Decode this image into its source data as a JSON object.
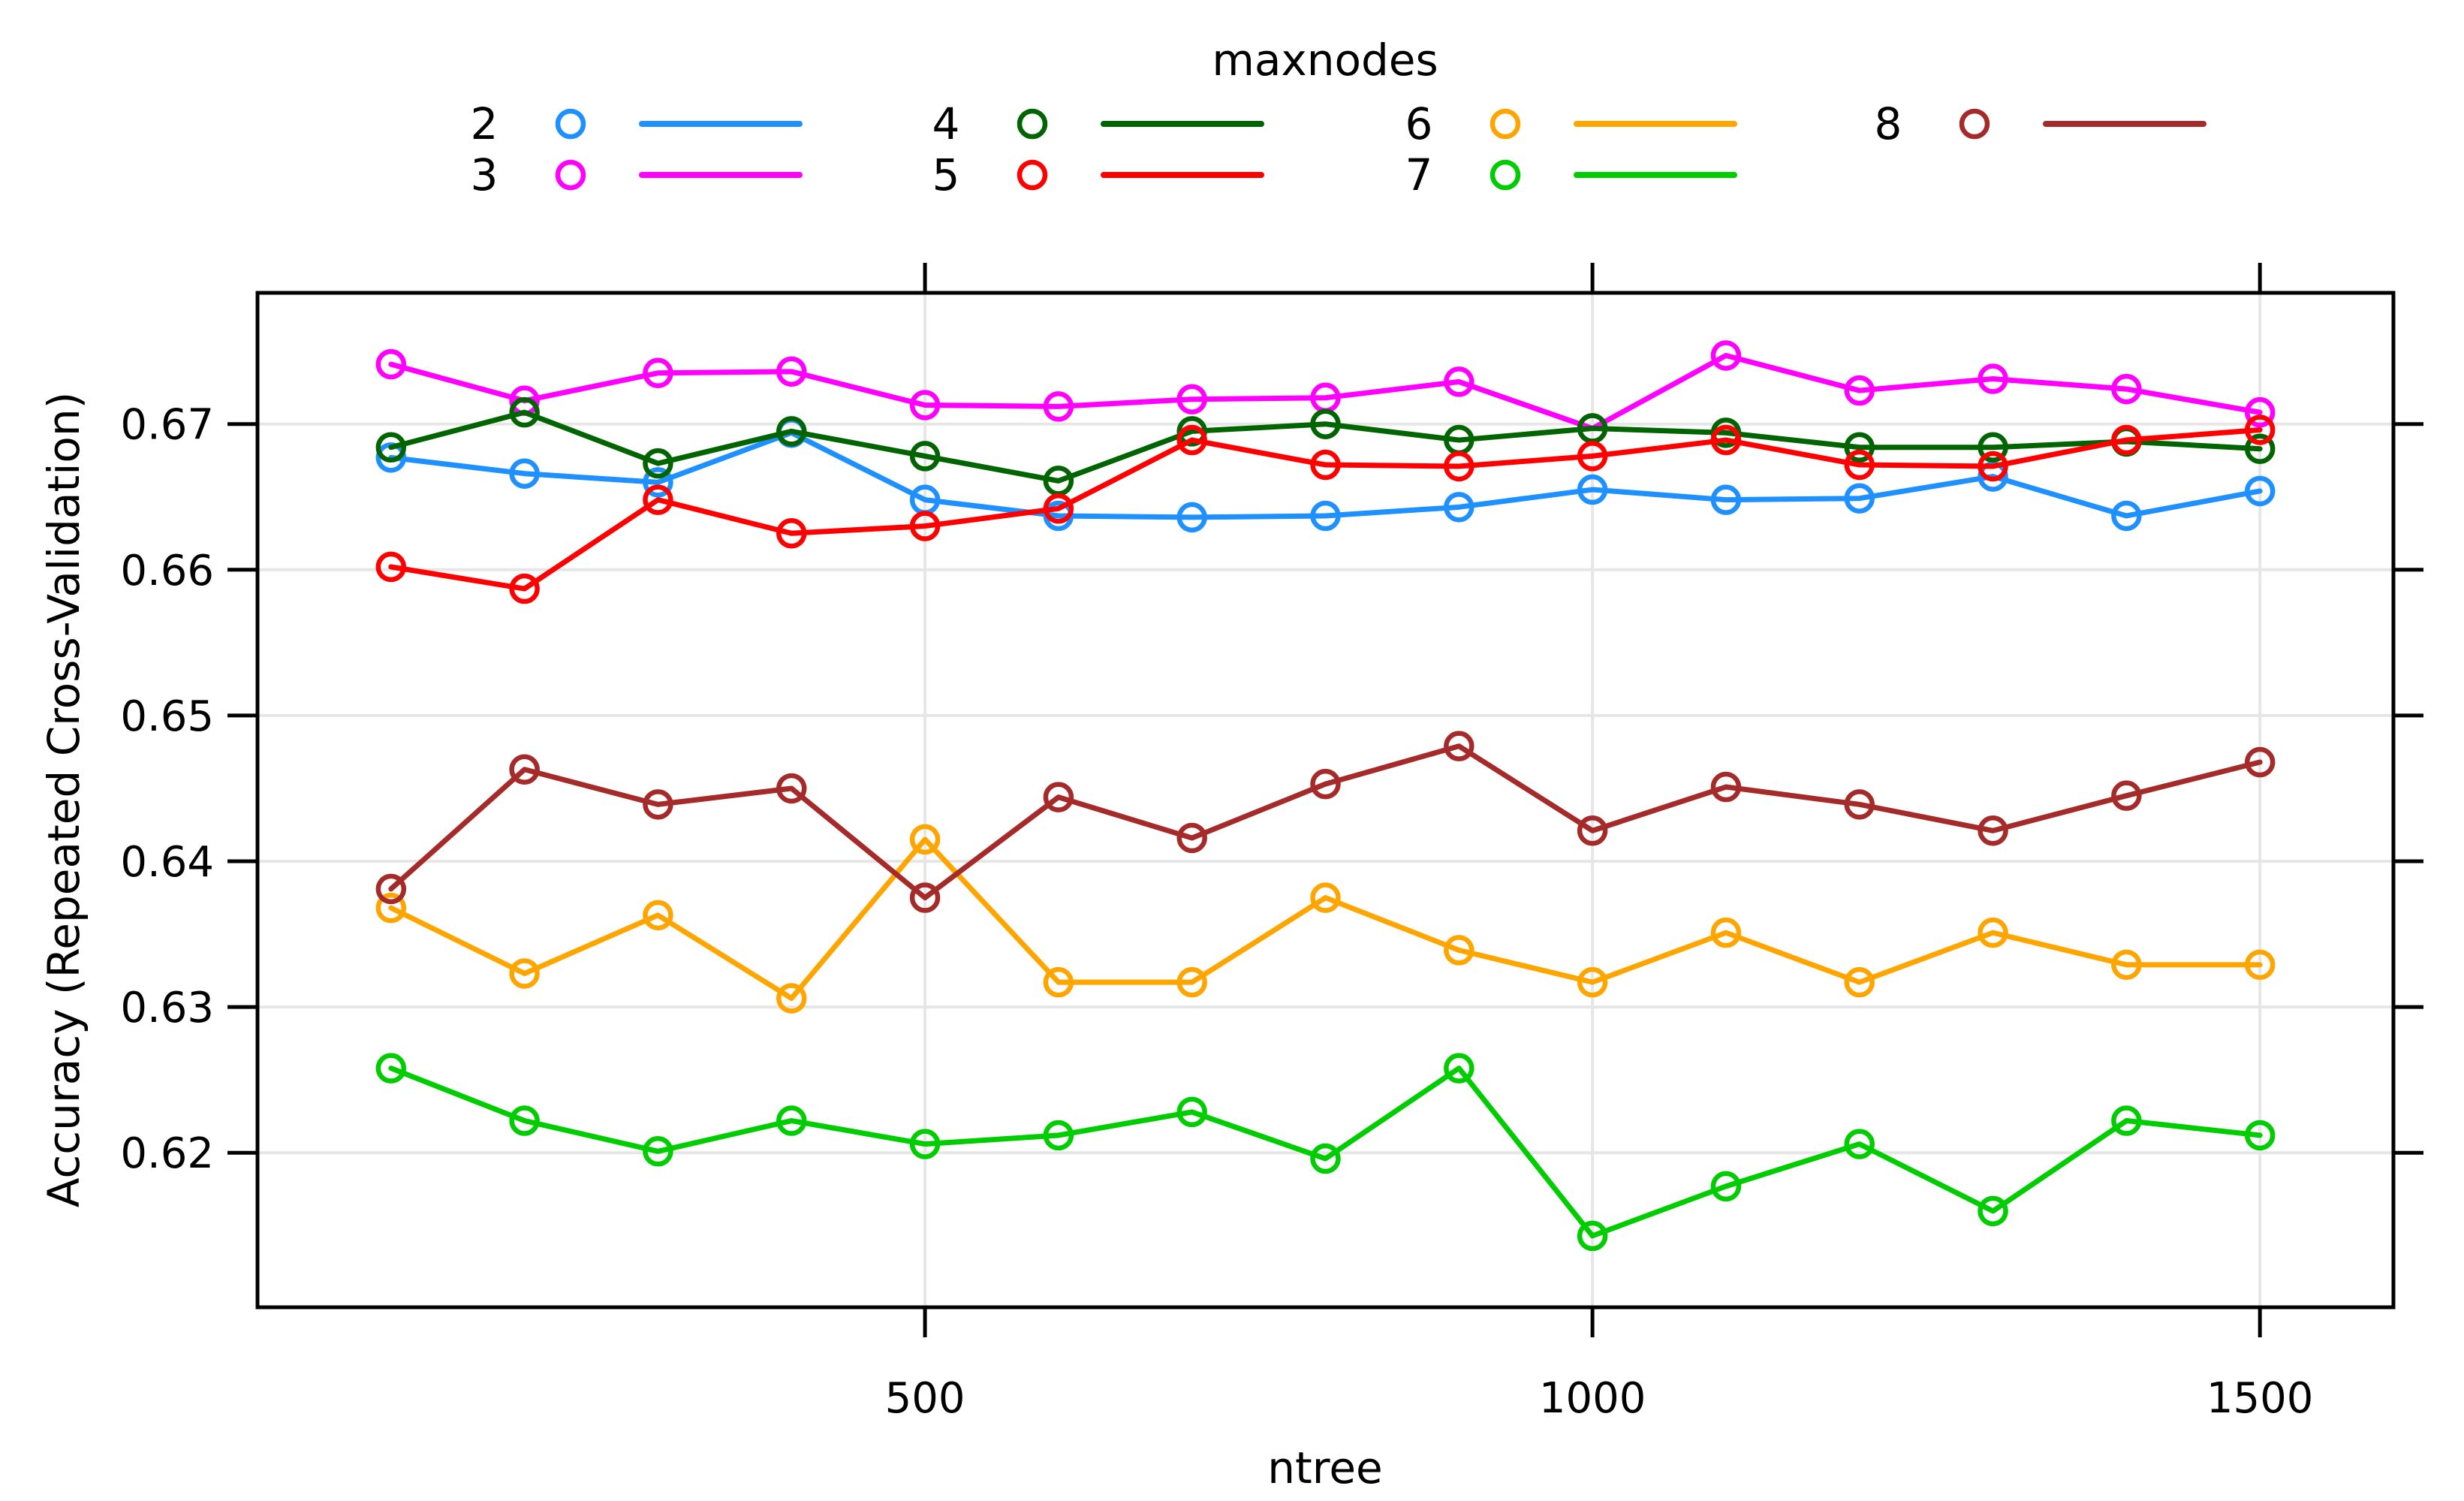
{
  "chart_data": {
    "type": "line",
    "title": "",
    "xlabel": "ntree",
    "ylabel": "Accuracy (Repeated Cross-Validation)",
    "legend_title": "maxnodes",
    "legend_position": "top",
    "grid": true,
    "x": [
      100,
      200,
      300,
      400,
      500,
      600,
      700,
      800,
      900,
      1000,
      1100,
      1200,
      1300,
      1400,
      1500
    ],
    "xlim": [
      0,
      1600
    ],
    "ylim": [
      0.6094,
      0.679
    ],
    "x_ticks": [
      500,
      1000,
      1500
    ],
    "x_tick_labels": [
      "500",
      "1000",
      "1500"
    ],
    "y_ticks": [
      0.62,
      0.63,
      0.64,
      0.65,
      0.66,
      0.67
    ],
    "y_tick_labels": [
      "0.62",
      "0.63",
      "0.64",
      "0.65",
      "0.66",
      "0.67"
    ],
    "series": [
      {
        "name": "2",
        "color": "#1E90FF",
        "values": [
          0.6677,
          0.6666,
          0.666,
          0.6694,
          0.6648,
          0.6637,
          0.6636,
          0.6637,
          0.6643,
          0.6655,
          0.6648,
          0.6649,
          0.6664,
          0.6637,
          0.6654
        ]
      },
      {
        "name": "3",
        "color": "#FF00FF",
        "values": [
          0.6741,
          0.6716,
          0.6735,
          0.6736,
          0.6713,
          0.6712,
          0.6717,
          0.6718,
          0.6729,
          0.6697,
          0.6747,
          0.6723,
          0.6731,
          0.6724,
          0.6708
        ]
      },
      {
        "name": "4",
        "color": "#006400",
        "values": [
          0.6684,
          0.6708,
          0.6673,
          0.6695,
          0.6678,
          0.6661,
          0.6695,
          0.67,
          0.6689,
          0.6697,
          0.6694,
          0.6684,
          0.6684,
          0.6688,
          0.6683
        ]
      },
      {
        "name": "5",
        "color": "#FF0000",
        "values": [
          0.6602,
          0.6587,
          0.6648,
          0.6625,
          0.663,
          0.6642,
          0.6689,
          0.6672,
          0.6671,
          0.6678,
          0.6689,
          0.6672,
          0.6671,
          0.6689,
          0.6696
        ]
      },
      {
        "name": "6",
        "color": "#FFA500",
        "values": [
          0.6368,
          0.6323,
          0.6363,
          0.6306,
          0.6415,
          0.6317,
          0.6317,
          0.6375,
          0.6339,
          0.6317,
          0.6351,
          0.6317,
          0.6351,
          0.6329,
          0.6329
        ]
      },
      {
        "name": "7",
        "color": "#00CD00",
        "values": [
          0.6258,
          0.6222,
          0.6201,
          0.6222,
          0.6206,
          0.6212,
          0.6228,
          0.6196,
          0.6258,
          0.6143,
          0.6177,
          0.6206,
          0.616,
          0.6222,
          0.6212
        ]
      },
      {
        "name": "8",
        "color": "#A52A2A",
        "values": [
          0.6381,
          0.6463,
          0.6439,
          0.645,
          0.6375,
          0.6444,
          0.6416,
          0.6453,
          0.6479,
          0.6421,
          0.6451,
          0.6439,
          0.6421,
          0.6445,
          0.6468
        ]
      }
    ],
    "legend_columns": [
      [
        "2",
        "3"
      ],
      [
        "4",
        "5"
      ],
      [
        "6",
        "7"
      ],
      [
        "8"
      ]
    ],
    "grid_color": "#E6E6E6",
    "axis_color": "#000000"
  }
}
